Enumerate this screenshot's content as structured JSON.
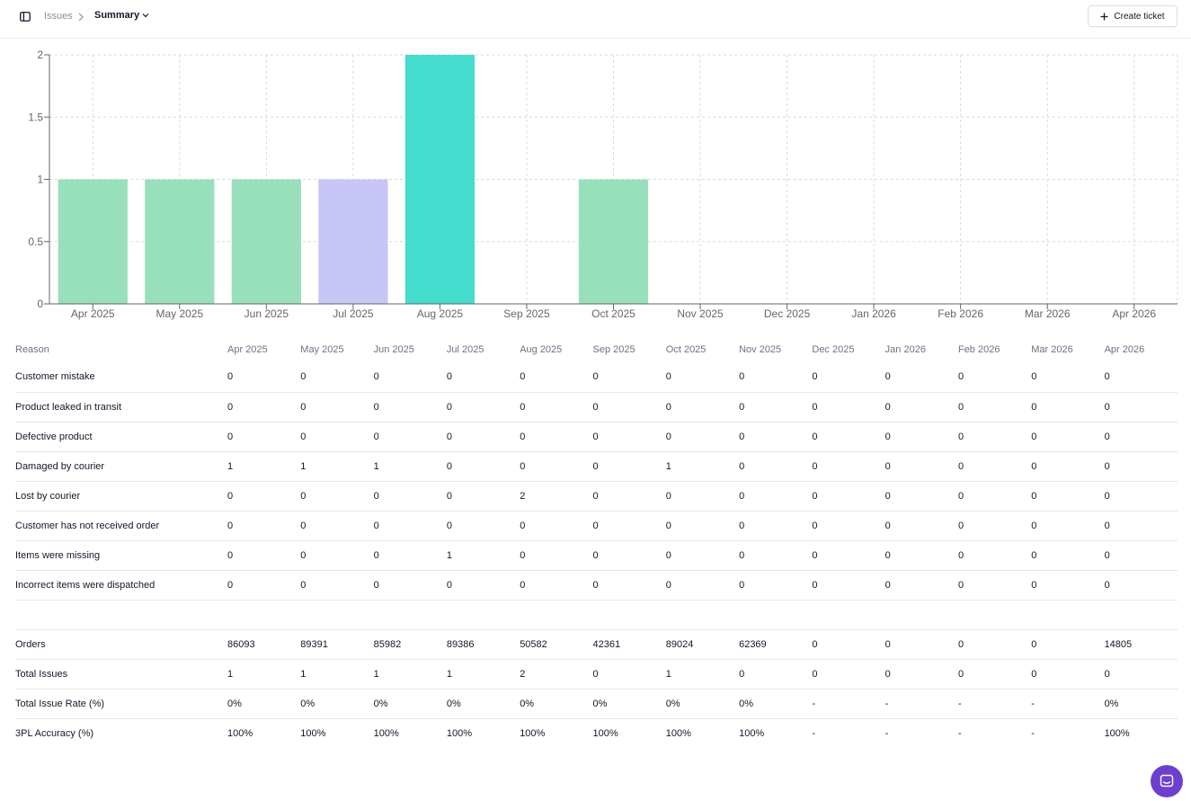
{
  "header": {
    "breadcrumb_root": "Issues",
    "breadcrumb_current": "Summary",
    "create_button_label": "Create ticket"
  },
  "colors": {
    "mint": "#98e0bb",
    "lavender": "#c7c6f6",
    "teal": "#44dccc",
    "chat_accent": "#6d3fd1"
  },
  "chart_data": {
    "type": "bar",
    "categories": [
      "Apr 2025",
      "May 2025",
      "Jun 2025",
      "Jul 2025",
      "Aug 2025",
      "Sep 2025",
      "Oct 2025",
      "Nov 2025",
      "Dec 2025",
      "Jan 2026",
      "Feb 2026",
      "Mar 2026",
      "Apr 2026"
    ],
    "values": [
      1,
      1,
      1,
      1,
      2,
      0,
      1,
      0,
      0,
      0,
      0,
      0,
      0
    ],
    "bar_colors": [
      "#98e0bb",
      "#98e0bb",
      "#98e0bb",
      "#c7c6f6",
      "#44dccc",
      "#98e0bb",
      "#98e0bb",
      "#98e0bb",
      "#98e0bb",
      "#98e0bb",
      "#98e0bb",
      "#98e0bb",
      "#98e0bb"
    ],
    "yticks": [
      "0",
      "0.5",
      "1",
      "1.5",
      "2"
    ],
    "ylim": [
      0,
      2
    ],
    "grid": true,
    "title": "",
    "xlabel": "",
    "ylabel": ""
  },
  "table": {
    "headers": [
      "Reason",
      "Apr 2025",
      "May 2025",
      "Jun 2025",
      "Jul 2025",
      "Aug 2025",
      "Sep 2025",
      "Oct 2025",
      "Nov 2025",
      "Dec 2025",
      "Jan 2026",
      "Feb 2026",
      "Mar 2026",
      "Apr 2026"
    ],
    "rows": [
      [
        "Customer mistake",
        "0",
        "0",
        "0",
        "0",
        "0",
        "0",
        "0",
        "0",
        "0",
        "0",
        "0",
        "0",
        "0"
      ],
      [
        "Product leaked in transit",
        "0",
        "0",
        "0",
        "0",
        "0",
        "0",
        "0",
        "0",
        "0",
        "0",
        "0",
        "0",
        "0"
      ],
      [
        "Defective product",
        "0",
        "0",
        "0",
        "0",
        "0",
        "0",
        "0",
        "0",
        "0",
        "0",
        "0",
        "0",
        "0"
      ],
      [
        "Damaged by courier",
        "1",
        "1",
        "1",
        "0",
        "0",
        "0",
        "1",
        "0",
        "0",
        "0",
        "0",
        "0",
        "0"
      ],
      [
        "Lost by courier",
        "0",
        "0",
        "0",
        "0",
        "2",
        "0",
        "0",
        "0",
        "0",
        "0",
        "0",
        "0",
        "0"
      ],
      [
        "Customer has not received order",
        "0",
        "0",
        "0",
        "0",
        "0",
        "0",
        "0",
        "0",
        "0",
        "0",
        "0",
        "0",
        "0"
      ],
      [
        "Items were missing",
        "0",
        "0",
        "0",
        "1",
        "0",
        "0",
        "0",
        "0",
        "0",
        "0",
        "0",
        "0",
        "0"
      ],
      [
        "Incorrect items were dispatched",
        "0",
        "0",
        "0",
        "0",
        "0",
        "0",
        "0",
        "0",
        "0",
        "0",
        "0",
        "0",
        "0"
      ]
    ],
    "summary_rows": [
      [
        "Orders",
        "86093",
        "89391",
        "85982",
        "89386",
        "50582",
        "42361",
        "89024",
        "62369",
        "0",
        "0",
        "0",
        "0",
        "14805"
      ],
      [
        "Total Issues",
        "1",
        "1",
        "1",
        "1",
        "2",
        "0",
        "1",
        "0",
        "0",
        "0",
        "0",
        "0",
        "0"
      ],
      [
        "Total Issue Rate (%)",
        "0%",
        "0%",
        "0%",
        "0%",
        "0%",
        "0%",
        "0%",
        "0%",
        "-",
        "-",
        "-",
        "-",
        "0%"
      ],
      [
        "3PL Accuracy (%)",
        "100%",
        "100%",
        "100%",
        "100%",
        "100%",
        "100%",
        "100%",
        "100%",
        "-",
        "-",
        "-",
        "-",
        "100%"
      ]
    ]
  }
}
